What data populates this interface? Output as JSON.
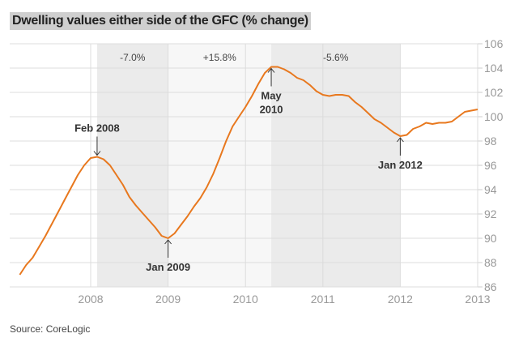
{
  "chart_data": {
    "type": "line",
    "title": "Dwelling values either side of the GFC (% change)",
    "source": "Source: CoreLogic",
    "xlabel": "",
    "ylabel": "",
    "ylim": [
      86,
      106
    ],
    "xlim": [
      2007.0,
      2013.0
    ],
    "yticks": [
      "86",
      "88",
      "90",
      "92",
      "94",
      "96",
      "98",
      "100",
      "102",
      "104",
      "106"
    ],
    "xticks": [
      "2008",
      "2009",
      "2010",
      "2011",
      "2012",
      "2013"
    ],
    "grid": true,
    "line_color": "#e8781e",
    "series": [
      {
        "name": "Dwelling values",
        "start": "2007-02",
        "frequency": "monthly",
        "values": [
          87.0,
          87.8,
          88.4,
          89.3,
          90.2,
          91.2,
          92.2,
          93.2,
          94.2,
          95.2,
          96.0,
          96.6,
          96.7,
          96.5,
          96.0,
          95.2,
          94.4,
          93.4,
          92.7,
          92.1,
          91.5,
          90.9,
          90.2,
          90.0,
          90.4,
          91.1,
          91.8,
          92.6,
          93.3,
          94.2,
          95.3,
          96.6,
          98.0,
          99.2,
          100.0,
          100.8,
          101.7,
          102.7,
          103.6,
          104.1,
          104.1,
          103.9,
          103.6,
          103.2,
          103.0,
          102.6,
          102.1,
          101.8,
          101.7,
          101.8,
          101.8,
          101.7,
          101.2,
          100.8,
          100.3,
          99.8,
          99.5,
          99.1,
          98.7,
          98.4,
          98.5,
          99.0,
          99.2,
          99.5,
          99.4,
          99.5,
          99.5,
          99.6,
          100.0,
          100.4,
          100.5,
          100.6
        ]
      }
    ],
    "bands": [
      {
        "from": 2008.083,
        "to": 2009.0,
        "label": "-7.0%",
        "shade": "dark"
      },
      {
        "from": 2009.0,
        "to": 2010.333,
        "label": "+15.8%",
        "shade": "light"
      },
      {
        "from": 2010.333,
        "to": 2012.0,
        "label": "-5.6%",
        "shade": "dark"
      }
    ],
    "annotations": [
      {
        "x": 2008.083,
        "y": 96.7,
        "lines": [
          "Feb 2008"
        ],
        "position": "above"
      },
      {
        "x": 2009.0,
        "y": 90.0,
        "lines": [
          "Jan 2009"
        ],
        "position": "below"
      },
      {
        "x": 2010.333,
        "y": 104.1,
        "lines": [
          "May",
          "2010"
        ],
        "position": "below"
      },
      {
        "x": 2012.0,
        "y": 98.4,
        "lines": [
          "Jan 2012"
        ],
        "position": "below"
      }
    ]
  }
}
